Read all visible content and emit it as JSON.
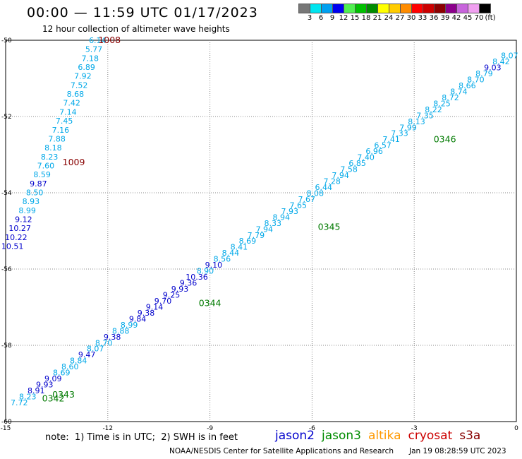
{
  "header": {
    "title": "00:00 — 11:59 UTC 01/17/2023",
    "subtitle": "12 hour collection of altimeter wave heights"
  },
  "legend": {
    "colors": [
      "#777777",
      "#00e5f0",
      "#00a0f0",
      "#0000f0",
      "#50f050",
      "#00c000",
      "#008c00",
      "#ffff00",
      "#ffcc00",
      "#ff8c00",
      "#ff0000",
      "#cc0000",
      "#8c0000",
      "#8c008c",
      "#c864dc",
      "#f0a0f0",
      "#000000"
    ],
    "labels": [
      "3",
      "6",
      "9",
      "12",
      "15",
      "18",
      "21",
      "24",
      "27",
      "30",
      "33",
      "36",
      "39",
      "42",
      "45",
      "70",
      "(ft)"
    ]
  },
  "map": {
    "lon_ticks": [
      "-15",
      "-12",
      "-9",
      "-6",
      "-3",
      "0"
    ],
    "lat_ticks": [
      "-50",
      "-52",
      "-54",
      "-56",
      "-58",
      "-60"
    ],
    "lon_range": [
      -15,
      0
    ],
    "lat_range": [
      -60,
      -50
    ],
    "gridline_lons": [
      -12,
      -9,
      -6,
      -3
    ],
    "gridline_lats": [
      -52,
      -54,
      -56,
      -58
    ]
  },
  "chart_data": {
    "type": "scatter",
    "x_axis": "longitude",
    "y_axis": "latitude",
    "track_left": {
      "start": [
        -12.3,
        -50
      ],
      "end": [
        -14.8,
        -55.4
      ],
      "values": [
        "6.14",
        "5.77",
        "7.18",
        "6.89",
        "7.92",
        "7.52",
        "8.68",
        "7.42",
        "7.14",
        "7.45",
        "7.16",
        "7.88",
        "8.18",
        "8.23",
        "7.60",
        "8.59",
        "9.87",
        "8.50",
        "8.93",
        "8.99",
        "9.12",
        "10.27",
        "10.22",
        "10.51"
      ],
      "colors": [
        "#00a8e8",
        "#00a8e8",
        "#00a8e8",
        "#00a8e8",
        "#00a8e8",
        "#00a8e8",
        "#00a8e8",
        "#00a8e8",
        "#00a8e8",
        "#00a8e8",
        "#00a8e8",
        "#00a8e8",
        "#00a8e8",
        "#00a8e8",
        "#00a8e8",
        "#00a8e8",
        "#0000cc",
        "#00a8e8",
        "#00a8e8",
        "#00a8e8",
        "#0000cc",
        "#0000cc",
        "#0000cc",
        "#0000cc"
      ]
    },
    "track_right": {
      "start": [
        -14.6,
        -59.5
      ],
      "end": [
        -0.2,
        -50.4
      ],
      "values": [
        "7.72",
        "8.23",
        "8.91",
        "9.93",
        "9.09",
        "8.69",
        "8.60",
        "8.84",
        "9.47",
        "8.07",
        "8.70",
        "9.38",
        "8.88",
        "8.99",
        "9.84",
        "9.38",
        "9.14",
        "9.70",
        "9.25",
        "9.93",
        "9.36",
        "10.36",
        "8.90",
        "9.10",
        "8.56",
        "8.44",
        "8.41",
        "8.69",
        "7.79",
        "7.94",
        "8.33",
        "8.94",
        "7.93",
        "7.65",
        "7.67",
        "8.08",
        "6.44",
        "7.28",
        "7.94",
        "7.58",
        "6.85",
        "7.40",
        "6.96",
        "6.57",
        "7.41",
        "7.33",
        "7.99",
        "8.13",
        "7.35",
        "8.22",
        "8.25",
        "8.72",
        "8.74",
        "8.66",
        "8.70",
        "8.79",
        "9.03",
        "8.42",
        "8.07"
      ],
      "colors": [
        "#00a8e8",
        "#00a8e8",
        "#0000cc",
        "#0000cc",
        "#0000cc",
        "#00a8e8",
        "#00a8e8",
        "#00a8e8",
        "#0000cc",
        "#00a8e8",
        "#00a8e8",
        "#0000cc",
        "#00a8e8",
        "#00a8e8",
        "#0000cc",
        "#0000cc",
        "#0000cc",
        "#0000cc",
        "#0000cc",
        "#0000cc",
        "#0000cc",
        "#0000cc",
        "#00a8e8",
        "#0000cc",
        "#00a8e8",
        "#00a8e8",
        "#00a8e8",
        "#00a8e8",
        "#00a8e8",
        "#00a8e8",
        "#00a8e8",
        "#00a8e8",
        "#00a8e8",
        "#00a8e8",
        "#00a8e8",
        "#00a8e8",
        "#00a8e8",
        "#00a8e8",
        "#00a8e8",
        "#00a8e8",
        "#00a8e8",
        "#00a8e8",
        "#00a8e8",
        "#00a8e8",
        "#00a8e8",
        "#00a8e8",
        "#00a8e8",
        "#00a8e8",
        "#00a8e8",
        "#00a8e8",
        "#00a8e8",
        "#00a8e8",
        "#00a8e8",
        "#00a8e8",
        "#00a8e8",
        "#00a8e8",
        "#0000cc",
        "#00a8e8",
        "#00a8e8"
      ]
    },
    "timestamps": [
      {
        "text": "1008",
        "lon": -11.95,
        "lat": -50.0,
        "color": "#880000"
      },
      {
        "text": "1009",
        "lon": -13.0,
        "lat": -53.2,
        "color": "#880000"
      },
      {
        "text": "0346",
        "lon": -2.1,
        "lat": -52.6,
        "color": "#007a00"
      },
      {
        "text": "0345",
        "lon": -5.5,
        "lat": -54.9,
        "color": "#007a00"
      },
      {
        "text": "0344",
        "lon": -9.0,
        "lat": -56.9,
        "color": "#007a00"
      },
      {
        "text": "0343",
        "lon": -13.3,
        "lat": -59.3,
        "color": "#007a00"
      },
      {
        "text": "0342",
        "lon": -13.6,
        "lat": -59.4,
        "color": "#007a00"
      }
    ]
  },
  "footer": {
    "note": "note:  1) Time is in UTC;  2) SWH is in feet",
    "missions": [
      {
        "label": "jason2",
        "color": "#0000cc"
      },
      {
        "label": "jason3",
        "color": "#008c00"
      },
      {
        "label": "altika",
        "color": "#ff9900"
      },
      {
        "label": "cryosat",
        "color": "#cc0000"
      },
      {
        "label": "s3a",
        "color": "#880000"
      }
    ],
    "credit": "NOAA/NESDIS Center for Satellite Applications and Research",
    "timestamp": "Jan 19 08:28:59 UTC 2023"
  }
}
